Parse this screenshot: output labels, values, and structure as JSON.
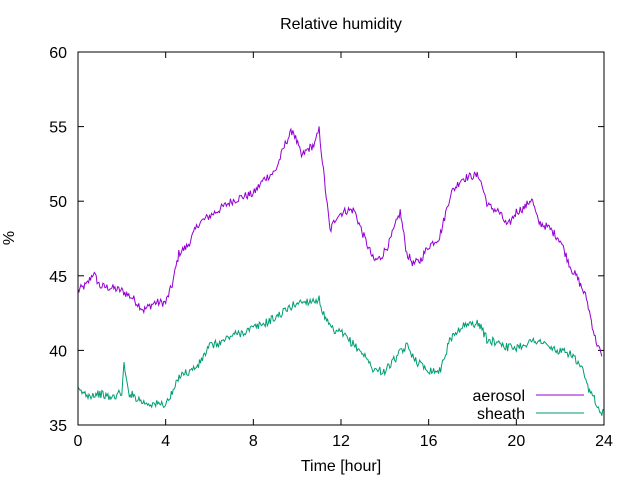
{
  "chart_data": {
    "type": "line",
    "title": "Relative humidity",
    "xlabel": "Time [hour]",
    "ylabel": "%",
    "xlim": [
      0,
      24
    ],
    "ylim": [
      35,
      60
    ],
    "xticks": [
      "0",
      "4",
      "8",
      "12",
      "16",
      "20",
      "24"
    ],
    "yticks": [
      "35",
      "40",
      "45",
      "50",
      "55",
      "60"
    ],
    "grid": false,
    "legend_position": "bottom-right",
    "series": [
      {
        "name": "aerosol",
        "color": "#9400d3",
        "x": [
          0,
          0.4,
          0.7,
          1,
          1.5,
          2,
          2.5,
          3,
          3.5,
          4,
          4.3,
          4.6,
          5,
          5.5,
          6,
          6.5,
          7,
          7.5,
          8,
          8.5,
          9,
          9.5,
          9.8,
          10.2,
          10.5,
          10.8,
          11,
          11.2,
          11.5,
          11.8,
          12,
          12.3,
          12.6,
          13,
          13.5,
          13.8,
          14.2,
          14.7,
          15,
          15.3,
          15.6,
          16,
          16.5,
          17,
          17.5,
          18,
          18.3,
          18.7,
          19.2,
          19.6,
          20,
          20.4,
          20.7,
          21,
          21.5,
          22,
          22.5,
          22.8,
          23.2,
          23.6,
          23.9
        ],
        "y": [
          44,
          44.4,
          45.2,
          44.3,
          44.2,
          44,
          43.5,
          42.7,
          43.2,
          43.2,
          44.4,
          46.5,
          47,
          48.5,
          49,
          49.5,
          50,
          50.3,
          50.5,
          51.5,
          52,
          54,
          54.8,
          53,
          53.5,
          53.8,
          54.8,
          52,
          48,
          49,
          49.2,
          49.4,
          49.4,
          47.8,
          46,
          46.2,
          47.2,
          49.3,
          46.5,
          45.8,
          46,
          47,
          47.6,
          50.5,
          51.5,
          51.7,
          51.7,
          49.7,
          49.3,
          48.3,
          49.3,
          49.6,
          50.2,
          48.6,
          48.2,
          47.4,
          45.5,
          44.8,
          43.5,
          40.8,
          39.6
        ]
      },
      {
        "name": "sheath",
        "color": "#009e73",
        "x": [
          0,
          0.5,
          1,
          1.5,
          2,
          2.1,
          2.3,
          2.6,
          3,
          3.5,
          4,
          4.3,
          4.7,
          5,
          5.5,
          6,
          6.5,
          7,
          7.5,
          8,
          8.5,
          9,
          9.5,
          10,
          10.5,
          11,
          11.3,
          11.7,
          12,
          12.5,
          13,
          13.5,
          14,
          14.5,
          15,
          15.5,
          16,
          16.5,
          17,
          17.5,
          18,
          18.3,
          18.7,
          19.2,
          19.6,
          20,
          20.5,
          21,
          21.5,
          22,
          22.5,
          23,
          23.3,
          23.6,
          23.8,
          24
        ],
        "y": [
          37.3,
          37,
          37.1,
          36.8,
          37.2,
          39,
          37.2,
          36.9,
          36.5,
          36.4,
          36.4,
          37.1,
          38.5,
          38.5,
          39,
          40.3,
          40.5,
          41,
          41.2,
          41.5,
          41.8,
          42.2,
          42.7,
          43.2,
          43.3,
          43.4,
          42,
          41.2,
          41.2,
          40.5,
          39.8,
          38.7,
          38.6,
          39.5,
          40.3,
          39.2,
          38.7,
          38.6,
          40.8,
          41.6,
          41.8,
          41.8,
          40.6,
          40.6,
          40.2,
          40.2,
          40.5,
          40.7,
          40.2,
          39.9,
          39.8,
          38.7,
          37.3,
          36.7,
          35.8,
          36
        ]
      }
    ]
  }
}
